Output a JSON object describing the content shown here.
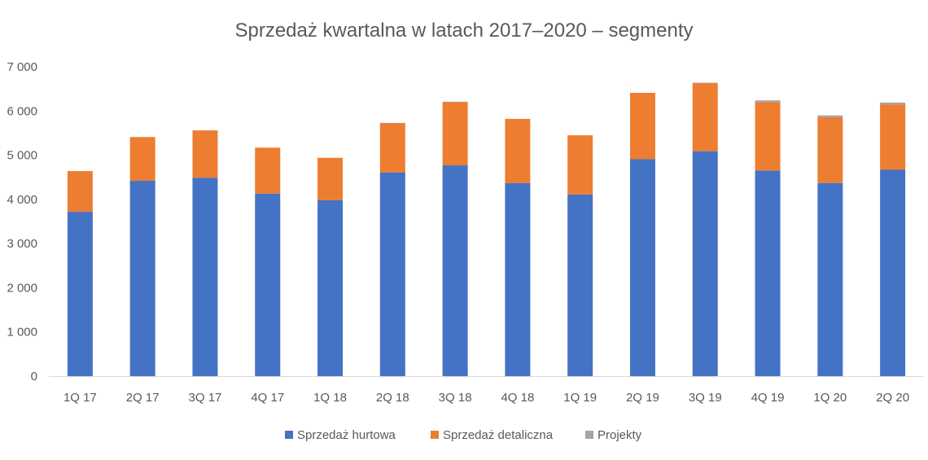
{
  "chart_data": {
    "type": "bar",
    "stacked": true,
    "title": "Sprzedaż kwartalna w latach 2017–2020 – segmenty",
    "xlabel": "",
    "ylabel": "",
    "ylim": [
      0,
      7000
    ],
    "y_ticks": [
      0,
      1000,
      2000,
      3000,
      4000,
      5000,
      6000,
      7000
    ],
    "y_tick_labels": [
      "0",
      "1 000",
      "2 000",
      "3 000",
      "4 000",
      "5 000",
      "6 000",
      "7 000"
    ],
    "grid": false,
    "legend_position": "bottom",
    "categories": [
      "1Q 17",
      "2Q 17",
      "3Q 17",
      "4Q 17",
      "1Q 18",
      "2Q 18",
      "3Q 18",
      "4Q 18",
      "1Q 19",
      "2Q 19",
      "3Q 19",
      "4Q 19",
      "1Q 20",
      "2Q 20"
    ],
    "series": [
      {
        "name": "Sprzedaż hurtowa",
        "color": "#4472C4",
        "values": [
          3720,
          4420,
          4490,
          4130,
          3980,
          4610,
          4770,
          4370,
          4110,
          4910,
          5090,
          4650,
          4370,
          4670
        ]
      },
      {
        "name": "Sprzedaż detaliczna",
        "color": "#ED7D31",
        "values": [
          920,
          990,
          1070,
          1040,
          960,
          1110,
          1430,
          1450,
          1340,
          1500,
          1540,
          1550,
          1490,
          1480
        ]
      },
      {
        "name": "Projekty",
        "color": "#A5A5A5",
        "values": [
          0,
          0,
          0,
          0,
          0,
          10,
          10,
          0,
          0,
          0,
          10,
          40,
          40,
          40
        ]
      }
    ]
  }
}
